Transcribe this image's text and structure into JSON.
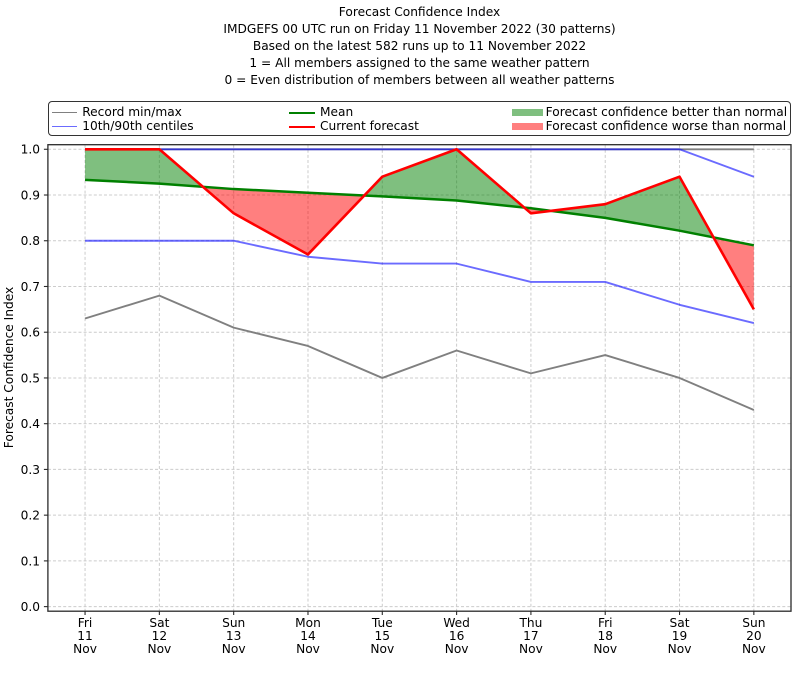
{
  "chart_data": {
    "type": "line",
    "title": "Forecast Confidence Index",
    "subtitle_lines": [
      "IMDGEFS 00 UTC run on Friday 11 November 2022 (30 patterns)",
      "Based on the latest 582 runs up to 11 November 2022",
      "1 = All members assigned to the same weather pattern",
      "0 = Even distribution of members between all weather patterns"
    ],
    "ylabel": "Forecast Confidence Index",
    "xlabel": "",
    "categories": [
      "Fri 11 Nov",
      "Sat 12 Nov",
      "Sun 13 Nov",
      "Mon 14 Nov",
      "Tue 15 Nov",
      "Wed 16 Nov",
      "Thu 17 Nov",
      "Fri 18 Nov",
      "Sat 19 Nov",
      "Sun 20 Nov"
    ],
    "x_tick_labels": [
      [
        "Fri",
        "11",
        "Nov"
      ],
      [
        "Sat",
        "12",
        "Nov"
      ],
      [
        "Sun",
        "13",
        "Nov"
      ],
      [
        "Mon",
        "14",
        "Nov"
      ],
      [
        "Tue",
        "15",
        "Nov"
      ],
      [
        "Wed",
        "16",
        "Nov"
      ],
      [
        "Thu",
        "17",
        "Nov"
      ],
      [
        "Fri",
        "18",
        "Nov"
      ],
      [
        "Sat",
        "19",
        "Nov"
      ],
      [
        "Sun",
        "20",
        "Nov"
      ]
    ],
    "y_tick_labels": [
      "0.0",
      "0.1",
      "0.2",
      "0.3",
      "0.4",
      "0.5",
      "0.6",
      "0.7",
      "0.8",
      "0.9",
      "1.0"
    ],
    "y_ticks": [
      0.0,
      0.1,
      0.2,
      0.3,
      0.4,
      0.5,
      0.6,
      0.7,
      0.8,
      0.9,
      1.0
    ],
    "ylim": [
      -0.01,
      1.01
    ],
    "xlim": [
      -0.5,
      9.5
    ],
    "grid": true,
    "series": [
      {
        "name": "Record min/max",
        "role": "record_max",
        "color": "#808080",
        "opacity": 1,
        "width": 1.9,
        "values": [
          1.0,
          1.0,
          1.0,
          1.0,
          1.0,
          1.0,
          1.0,
          1.0,
          1.0,
          1.0
        ]
      },
      {
        "name": "Record min/max",
        "role": "record_min",
        "color": "#808080",
        "opacity": 1,
        "width": 1.9,
        "values": [
          0.63,
          0.68,
          0.61,
          0.57,
          0.5,
          0.56,
          0.51,
          0.55,
          0.5,
          0.43
        ]
      },
      {
        "name": "10th/90th centiles",
        "role": "centile_90",
        "color": "#0000ff",
        "opacity": 0.58,
        "width": 1.9,
        "values": [
          1.0,
          1.0,
          1.0,
          1.0,
          1.0,
          1.0,
          1.0,
          1.0,
          1.0,
          0.94
        ]
      },
      {
        "name": "10th/90th centiles",
        "role": "centile_10",
        "color": "#0000ff",
        "opacity": 0.58,
        "width": 1.9,
        "values": [
          0.8,
          0.8,
          0.8,
          0.765,
          0.75,
          0.75,
          0.71,
          0.71,
          0.66,
          0.62
        ]
      },
      {
        "name": "Mean",
        "role": "mean",
        "color": "#008000",
        "opacity": 1,
        "width": 2.5,
        "values": [
          0.933,
          0.925,
          0.913,
          0.905,
          0.897,
          0.888,
          0.871,
          0.85,
          0.822,
          0.79
        ]
      },
      {
        "name": "Current forecast",
        "role": "forecast",
        "color": "#ff0000",
        "opacity": 1,
        "width": 2.6,
        "values": [
          1.0,
          1.0,
          0.86,
          0.77,
          0.94,
          1.0,
          0.86,
          0.88,
          0.94,
          0.65
        ]
      }
    ],
    "fills": {
      "upper_role": "forecast",
      "lower_role": "mean",
      "better": {
        "label": "Forecast confidence better than normal",
        "color": "#008000",
        "opacity": 0.5
      },
      "worse": {
        "label": "Forecast confidence worse than normal",
        "color": "#ff0000",
        "opacity": 0.5
      }
    },
    "legend": {
      "columns": [
        [
          {
            "swatch": "line",
            "color": "#808080",
            "opacity": 1,
            "lw": 1.9,
            "label": "Record min/max"
          },
          {
            "swatch": "line",
            "color": "#0000ff",
            "opacity": 0.58,
            "lw": 1.9,
            "label": "10th/90th centiles"
          }
        ],
        [
          {
            "swatch": "line",
            "color": "#008000",
            "opacity": 1,
            "lw": 2.5,
            "label": "Mean"
          },
          {
            "swatch": "line",
            "color": "#ff0000",
            "opacity": 1,
            "lw": 2.6,
            "label": "Current forecast"
          }
        ],
        [
          {
            "swatch": "patch",
            "color": "#008000",
            "opacity": 0.5,
            "lw": 0,
            "label": "Forecast confidence better than normal"
          },
          {
            "swatch": "patch",
            "color": "#ff0000",
            "opacity": 0.5,
            "lw": 0,
            "label": "Forecast confidence worse than normal"
          }
        ]
      ]
    },
    "colors": {
      "grid": "#cccccc",
      "spine": "#2a2a2a",
      "tick": "#2a2a2a",
      "text": "#000000",
      "background": "#ffffff"
    }
  }
}
